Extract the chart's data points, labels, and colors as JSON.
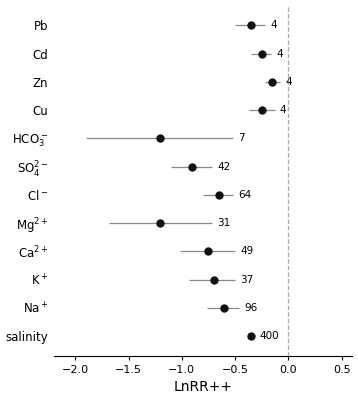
{
  "category_labels": [
    "salinity",
    "Na$^+$",
    "K$^+$",
    "Ca$^{2+}$",
    "Mg$^{2+}$",
    "Cl$^-$",
    "SO$_4^{2-}$",
    "HCO$_3^-$",
    "Cu",
    "Zn",
    "Cd",
    "Pb"
  ],
  "n_labels": [
    "400",
    "96",
    "37",
    "49",
    "31",
    "64",
    "42",
    "7",
    "4",
    "4",
    "4",
    "4"
  ],
  "centers": [
    -0.35,
    -0.6,
    -0.7,
    -0.75,
    -1.2,
    -0.65,
    -0.9,
    -1.2,
    -0.25,
    -0.15,
    -0.25,
    -0.35
  ],
  "ci_low": [
    -0.38,
    -0.76,
    -0.93,
    -1.02,
    -1.68,
    -0.8,
    -1.1,
    -1.9,
    -0.37,
    -0.22,
    -0.35,
    -0.5
  ],
  "ci_high": [
    -0.32,
    -0.46,
    -0.5,
    -0.5,
    -0.72,
    -0.52,
    -0.72,
    -0.52,
    -0.13,
    -0.08,
    -0.16,
    -0.22
  ],
  "xlabel": "LnRR++",
  "xlim": [
    -2.2,
    0.6
  ],
  "xticks": [
    -2.0,
    -1.5,
    -1.0,
    -0.5,
    0.0,
    0.5
  ],
  "dot_color": "#111111",
  "line_color": "#888888",
  "dashed_line_x": 0.0,
  "dot_size": 25,
  "background_color": "#ffffff"
}
